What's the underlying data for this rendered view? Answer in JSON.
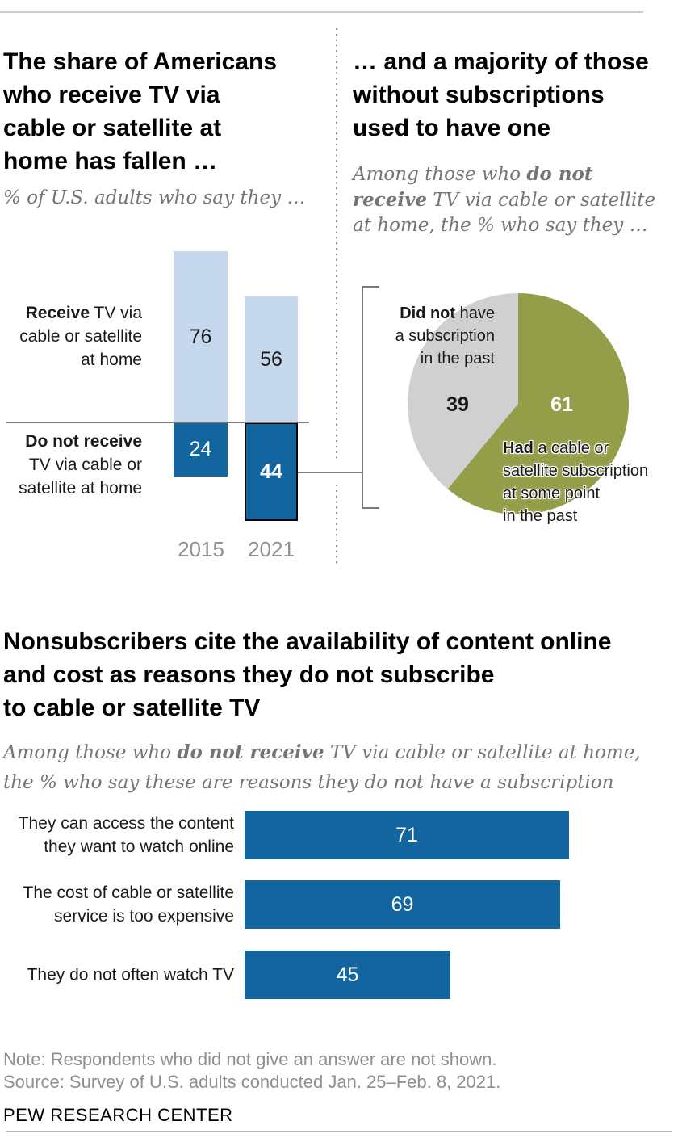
{
  "panel_left": {
    "title": "The share of Americans\nwho receive TV via\ncable or satellite at\nhome has fallen …",
    "subtitle": "% of U.S. adults who say they …"
  },
  "panel_right": {
    "title": "… and a majority of those\nwithout subscriptions\nused to have one",
    "subtitle_pre": "Among those who ",
    "subtitle_bold": "do not\nreceive",
    "subtitle_post": " TV via cable or satellite\nat home, the % who say they …"
  },
  "section2": {
    "title": "Nonsubscribers cite the availability of content online\nand cost as reasons they do not subscribe\nto cable or satellite TV",
    "subtitle_pre": "Among those who ",
    "subtitle_bold": "do not receive",
    "subtitle_post": " TV via cable or satellite at home,\nthe % who say these are reasons they do not have a subscription"
  },
  "chart_data": [
    {
      "type": "bar",
      "subtype": "diverging-stacked-column",
      "categories": [
        "2015",
        "2021"
      ],
      "series": [
        {
          "name": "Receive TV via cable or satellite at home",
          "values": [
            76,
            56
          ],
          "color": "#c5d8ed"
        },
        {
          "name": "Do not receive TV via cable or satellite at home",
          "values": [
            24,
            44
          ],
          "color": "#12659e"
        }
      ],
      "axis_labels": {
        "receive_bold": "Receive",
        "receive_rest": " TV via\ncable or satellite\nat home",
        "not_receive_bold": "Do not receive",
        "not_receive_rest": "\nTV via cable or\nsatellite at home"
      },
      "highlighted_value": 44,
      "ylim": [
        -44,
        76
      ],
      "grid": false,
      "legend": "none"
    },
    {
      "type": "pie",
      "start": "top",
      "direction": "clockwise",
      "slices": [
        {
          "value": 61,
          "color": "#949d48",
          "value_color": "#ffffff",
          "label_bold": "Had",
          "label_rest": " a cable or\nsatellite subscription\nat some point\nin the past"
        },
        {
          "value": 39,
          "color": "#d0d0d0",
          "value_color": "#1a1a1a",
          "label_bold": "Did not",
          "label_rest": " have\na subscription\nin the past"
        }
      ]
    },
    {
      "type": "bar",
      "orientation": "horizontal",
      "categories": [
        "They can access the content\nthey want to watch online",
        "The cost of cable or satellite\nservice is too expensive",
        "They do not often watch TV"
      ],
      "values": [
        71,
        69,
        45
      ],
      "color": "#12659e",
      "xlim": [
        0,
        100
      ],
      "grid": false
    }
  ],
  "colors": {
    "light_blue": "#c5d8ed",
    "dark_blue": "#12659e",
    "olive_green": "#949d48",
    "slice_gray": "#d0d0d0",
    "line_gray": "#7a7a7a",
    "text_gray": "#757575"
  },
  "footer": {
    "note": "Note: Respondents who did not give an answer are not shown.",
    "source": "Source: Survey of U.S. adults conducted Jan. 25–Feb. 8, 2021.",
    "brand": "PEW RESEARCH CENTER"
  }
}
